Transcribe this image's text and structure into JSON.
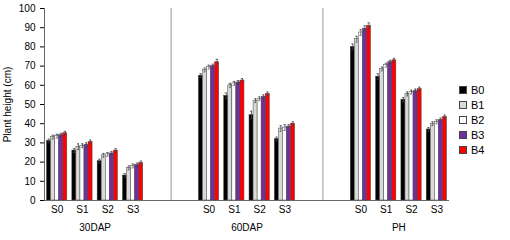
{
  "chart_data": {
    "type": "bar",
    "y_label": "Plant height (cm)",
    "categories": [
      "S0",
      "S1",
      "S2",
      "S3",
      "S0",
      "S1",
      "S2",
      "S3",
      "S0",
      "S1",
      "S2",
      "S3"
    ],
    "category_groups": [
      "30DAP",
      "30DAP",
      "30DAP",
      "30DAP",
      "60DAP",
      "60DAP",
      "60DAP",
      "60DAP",
      "PH",
      "PH",
      "PH",
      "PH"
    ],
    "ylim": [
      0,
      100
    ],
    "yticks": [
      0,
      10,
      20,
      30,
      40,
      50,
      60,
      70,
      80,
      90,
      100
    ],
    "grid": false,
    "legend": "right",
    "series": [
      {
        "name": "B0",
        "color": "#000000",
        "values": [
          31,
          26,
          20.5,
          13,
          65,
          54.5,
          44.5,
          32,
          80,
          64.5,
          52.5,
          37
        ],
        "errors": [
          1,
          1,
          1,
          1,
          1,
          1.5,
          2,
          1,
          1.5,
          1.5,
          1,
          1
        ]
      },
      {
        "name": "B1",
        "color": "#d9d9d9",
        "values": [
          33,
          28,
          23.5,
          17,
          68,
          60,
          52,
          37.5,
          84,
          68.5,
          55.5,
          40
        ],
        "errors": [
          1,
          1.5,
          1,
          1,
          1,
          1,
          1,
          1.5,
          1.5,
          1,
          1,
          1
        ]
      },
      {
        "name": "B2",
        "color": "#ffffff",
        "values": [
          33.5,
          28.5,
          24,
          18,
          69.5,
          61,
          53,
          38,
          87.5,
          70.5,
          56.5,
          41
        ],
        "errors": [
          1,
          1,
          1,
          1,
          1,
          1,
          1,
          1.5,
          1.5,
          1,
          1,
          1
        ]
      },
      {
        "name": "B3",
        "color": "#7030a0",
        "values": [
          34,
          29,
          24.5,
          18.5,
          70,
          61.5,
          54,
          38.5,
          89.5,
          72,
          57,
          42
        ],
        "errors": [
          1,
          1,
          1,
          1,
          1,
          1,
          1,
          1,
          1.5,
          1,
          1,
          1
        ]
      },
      {
        "name": "B4",
        "color": "#ff0000",
        "values": [
          35,
          30.5,
          26,
          19.5,
          72,
          62.5,
          55.5,
          40,
          91,
          73,
          58,
          43.5
        ],
        "errors": [
          1,
          1,
          1,
          1,
          1.5,
          1,
          1,
          1,
          1.5,
          1,
          1,
          1
        ]
      }
    ]
  }
}
